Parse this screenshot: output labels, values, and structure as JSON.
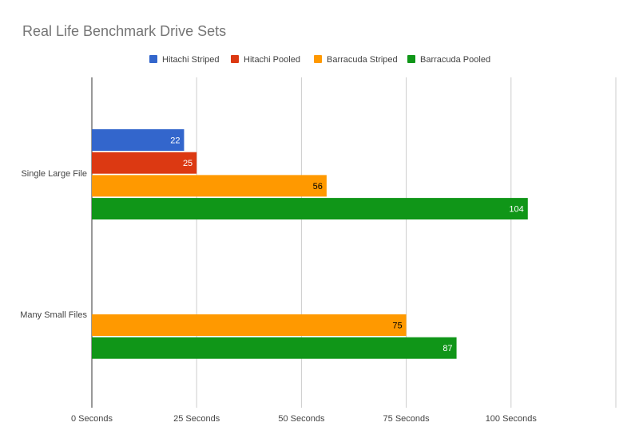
{
  "chart_data": {
    "type": "bar",
    "orientation": "horizontal",
    "title": "Real Life Benchmark Drive Sets",
    "xlabel": "",
    "ylabel": "",
    "xlim": [
      0,
      125
    ],
    "x_ticks": [
      "0 Seconds",
      "25 Seconds",
      "50 Seconds",
      "75 Seconds",
      "100 Seconds"
    ],
    "grid": true,
    "legend_position": "top",
    "categories": [
      "Single Large File",
      "Many Small Files"
    ],
    "series": [
      {
        "name": "Hitachi Striped",
        "color": "#3366cc",
        "label_color": "#ffffff",
        "values": [
          22,
          null
        ]
      },
      {
        "name": "Hitachi Pooled",
        "color": "#dc3912",
        "label_color": "#ffffff",
        "values": [
          25,
          null
        ]
      },
      {
        "name": "Barracuda Striped",
        "color": "#ff9900",
        "label_color": "#000000",
        "values": [
          56,
          75
        ]
      },
      {
        "name": "Barracuda Pooled",
        "color": "#109618",
        "label_color": "#ffffff",
        "values": [
          104,
          87
        ]
      }
    ]
  }
}
